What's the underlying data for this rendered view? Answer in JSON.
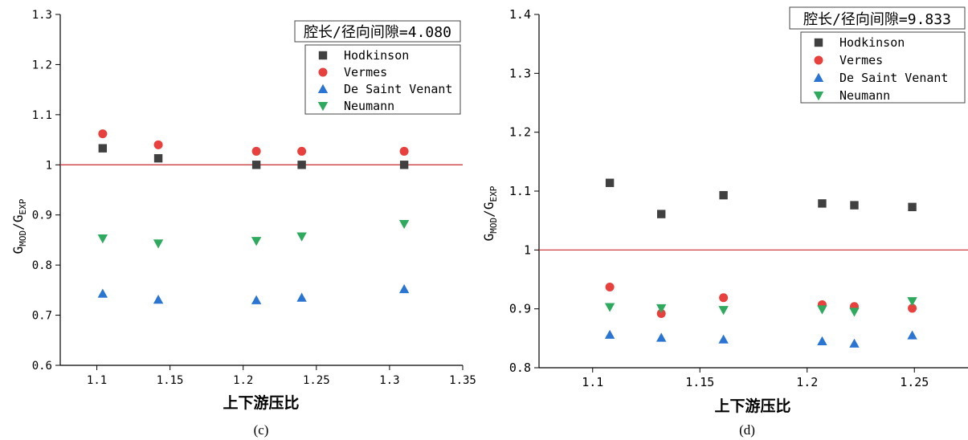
{
  "chart_data": [
    {
      "type": "scatter",
      "panel_label": "(c)",
      "annotation": "腔长/径向间隙=4.080",
      "xlabel": "上下游压比",
      "ylabel_main": "G",
      "ylabel_sub1": "MOD",
      "ylabel_sep": "/G",
      "ylabel_sub2": "EXP",
      "xlim": [
        1.075,
        1.35
      ],
      "ylim": [
        0.6,
        1.3
      ],
      "xticks": [
        1.1,
        1.15,
        1.2,
        1.25,
        1.3,
        1.35
      ],
      "xtick_labels": [
        "1.1",
        "1.15",
        "1.2",
        "1.25",
        "1.3",
        "1.35"
      ],
      "yticks": [
        0.6,
        0.7,
        0.8,
        0.9,
        1.0,
        1.1,
        1.2,
        1.3
      ],
      "ytick_labels": [
        "0.6",
        "0.7",
        "0.8",
        "0.9",
        "1",
        "1.1",
        "1.2",
        "1.3"
      ],
      "reference_line_y": 1.0,
      "grid": false,
      "legend_position": "top-right",
      "series": [
        {
          "name": "Hodkinson",
          "marker": "square",
          "color": "#404040",
          "x": [
            1.104,
            1.142,
            1.209,
            1.24,
            1.31
          ],
          "y": [
            1.033,
            1.013,
            1.0,
            1.0,
            1.0
          ]
        },
        {
          "name": "Vermes",
          "marker": "circle",
          "color": "#e8403c",
          "x": [
            1.104,
            1.142,
            1.209,
            1.24,
            1.31
          ],
          "y": [
            1.062,
            1.04,
            1.027,
            1.027,
            1.027
          ]
        },
        {
          "name": "De Saint Venant",
          "marker": "triangle-up",
          "color": "#2a75d3",
          "x": [
            1.104,
            1.142,
            1.209,
            1.24,
            1.31
          ],
          "y": [
            0.743,
            0.731,
            0.73,
            0.735,
            0.752
          ]
        },
        {
          "name": "Neumann",
          "marker": "triangle-down",
          "color": "#2eaa5e",
          "x": [
            1.104,
            1.142,
            1.209,
            1.24,
            1.31
          ],
          "y": [
            0.853,
            0.843,
            0.848,
            0.857,
            0.882
          ]
        }
      ]
    },
    {
      "type": "scatter",
      "panel_label": "(d)",
      "annotation": "腔长/径向间隙=9.833",
      "xlabel": "上下游压比",
      "ylabel_main": "G",
      "ylabel_sub1": "MOD",
      "ylabel_sep": "/G",
      "ylabel_sub2": "EXP",
      "xlim": [
        1.075,
        1.275
      ],
      "ylim": [
        0.8,
        1.4
      ],
      "xticks": [
        1.1,
        1.15,
        1.2,
        1.25
      ],
      "xtick_labels": [
        "1.1",
        "1.15",
        "1.2",
        "1.25"
      ],
      "yticks": [
        0.8,
        0.9,
        1.0,
        1.1,
        1.2,
        1.3,
        1.4
      ],
      "ytick_labels": [
        "0.8",
        "0.9",
        "1",
        "1.1",
        "1.2",
        "1.3",
        "1.4"
      ],
      "reference_line_y": 1.0,
      "grid": false,
      "legend_position": "top-right",
      "series": [
        {
          "name": "Hodkinson",
          "marker": "square",
          "color": "#404040",
          "x": [
            1.108,
            1.132,
            1.161,
            1.207,
            1.222,
            1.249
          ],
          "y": [
            1.114,
            1.061,
            1.093,
            1.079,
            1.076,
            1.073
          ]
        },
        {
          "name": "Vermes",
          "marker": "circle",
          "color": "#e8403c",
          "x": [
            1.108,
            1.132,
            1.161,
            1.207,
            1.222,
            1.249
          ],
          "y": [
            0.937,
            0.892,
            0.919,
            0.907,
            0.904,
            0.901
          ]
        },
        {
          "name": "De Saint Venant",
          "marker": "triangle-up",
          "color": "#2a75d3",
          "x": [
            1.108,
            1.132,
            1.161,
            1.207,
            1.222,
            1.249
          ],
          "y": [
            0.856,
            0.851,
            0.848,
            0.845,
            0.841,
            0.855
          ]
        },
        {
          "name": "Neumann",
          "marker": "triangle-down",
          "color": "#2eaa5e",
          "x": [
            1.108,
            1.132,
            1.161,
            1.207,
            1.222,
            1.249
          ],
          "y": [
            0.903,
            0.901,
            0.898,
            0.899,
            0.895,
            0.913
          ]
        }
      ]
    }
  ]
}
